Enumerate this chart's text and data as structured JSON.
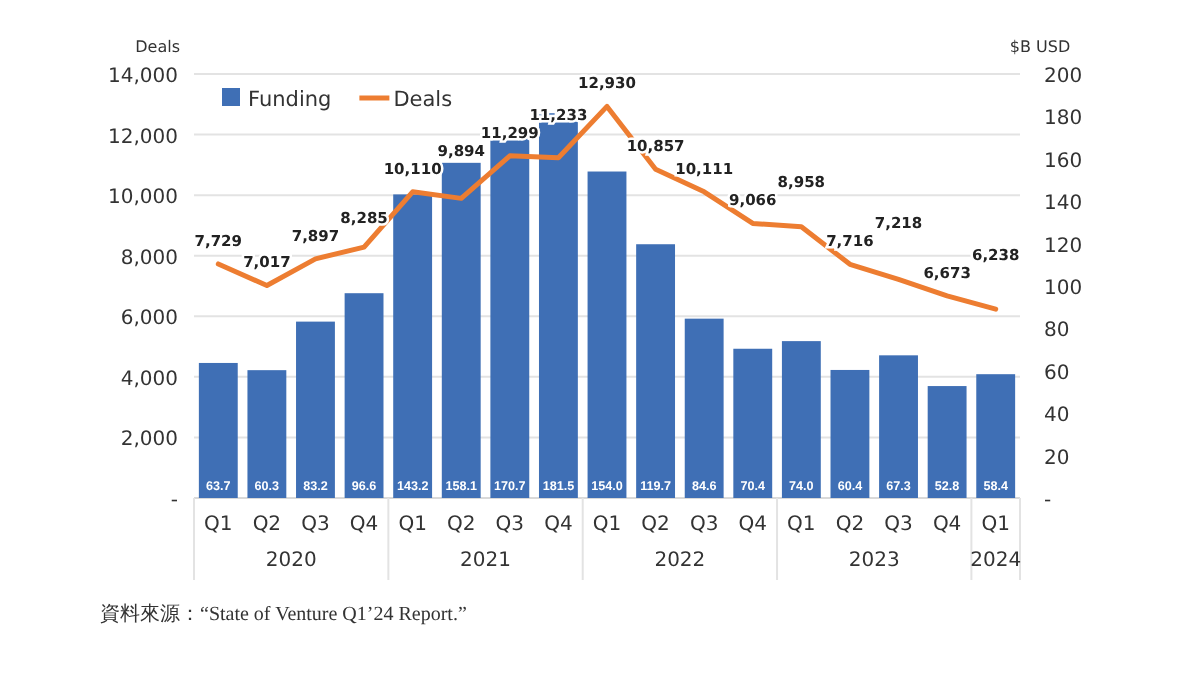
{
  "chart_data": {
    "type": "bar",
    "ylabel": "Deals",
    "y2label": "$B USD",
    "categories": [
      "Q1",
      "Q2",
      "Q3",
      "Q4",
      "Q1",
      "Q2",
      "Q3",
      "Q4",
      "Q1",
      "Q2",
      "Q3",
      "Q4",
      "Q1",
      "Q2",
      "Q3",
      "Q4",
      "Q1"
    ],
    "series": [
      {
        "name": "Funding",
        "axis": "y2",
        "color": "#3f6fb5",
        "values": [
          63.7,
          60.3,
          83.2,
          96.6,
          143.2,
          158.1,
          170.7,
          181.5,
          154.0,
          119.7,
          84.6,
          70.4,
          74.0,
          60.4,
          67.3,
          52.8,
          58.4
        ],
        "value_labels": [
          "63.7",
          "60.3",
          "83.2",
          "96.6",
          "143.2",
          "158.1",
          "170.7",
          "181.5",
          "154.0",
          "119.7",
          "84.6",
          "70.4",
          "74.0",
          "60.4",
          "67.3",
          "52.8",
          "58.4"
        ]
      },
      {
        "name": "Deals",
        "type": "line",
        "color": "#ed7d31",
        "values": [
          7729,
          7017,
          7897,
          8285,
          10110,
          9894,
          11299,
          11233,
          12930,
          10857,
          10111,
          9066,
          8958,
          7716,
          7218,
          6673,
          6238
        ],
        "value_labels": [
          "7,729",
          "7,017",
          "7,897",
          "8,285",
          "10,110",
          "9,894",
          "11,299",
          "11,233",
          "12,930",
          "10,857",
          "10,111",
          "9,066",
          "8,958",
          "7,716",
          "7,218",
          "6,673",
          "6,238"
        ]
      }
    ],
    "ylim": [
      0,
      14000
    ],
    "yticks": [
      {
        "value": 0,
        "label": "-"
      },
      {
        "value": 2000,
        "label": "2,000"
      },
      {
        "value": 4000,
        "label": "4,000"
      },
      {
        "value": 6000,
        "label": "6,000"
      },
      {
        "value": 8000,
        "label": "8,000"
      },
      {
        "value": 10000,
        "label": "10,000"
      },
      {
        "value": 12000,
        "label": "12,000"
      },
      {
        "value": 14000,
        "label": "14,000"
      }
    ],
    "y2lim": [
      0,
      200
    ],
    "y2ticks": [
      {
        "value": 0,
        "label": "-"
      },
      20,
      40,
      60,
      80,
      100,
      120,
      140,
      160,
      180,
      200
    ],
    "grid": "y",
    "legend": "top left",
    "marker": "none",
    "line_style": "solid",
    "annotations": [
      "2020",
      "2021",
      "2022",
      "2023",
      "2024",
      "資料來源：“State of Venture Q1’24 Report.”"
    ]
  }
}
